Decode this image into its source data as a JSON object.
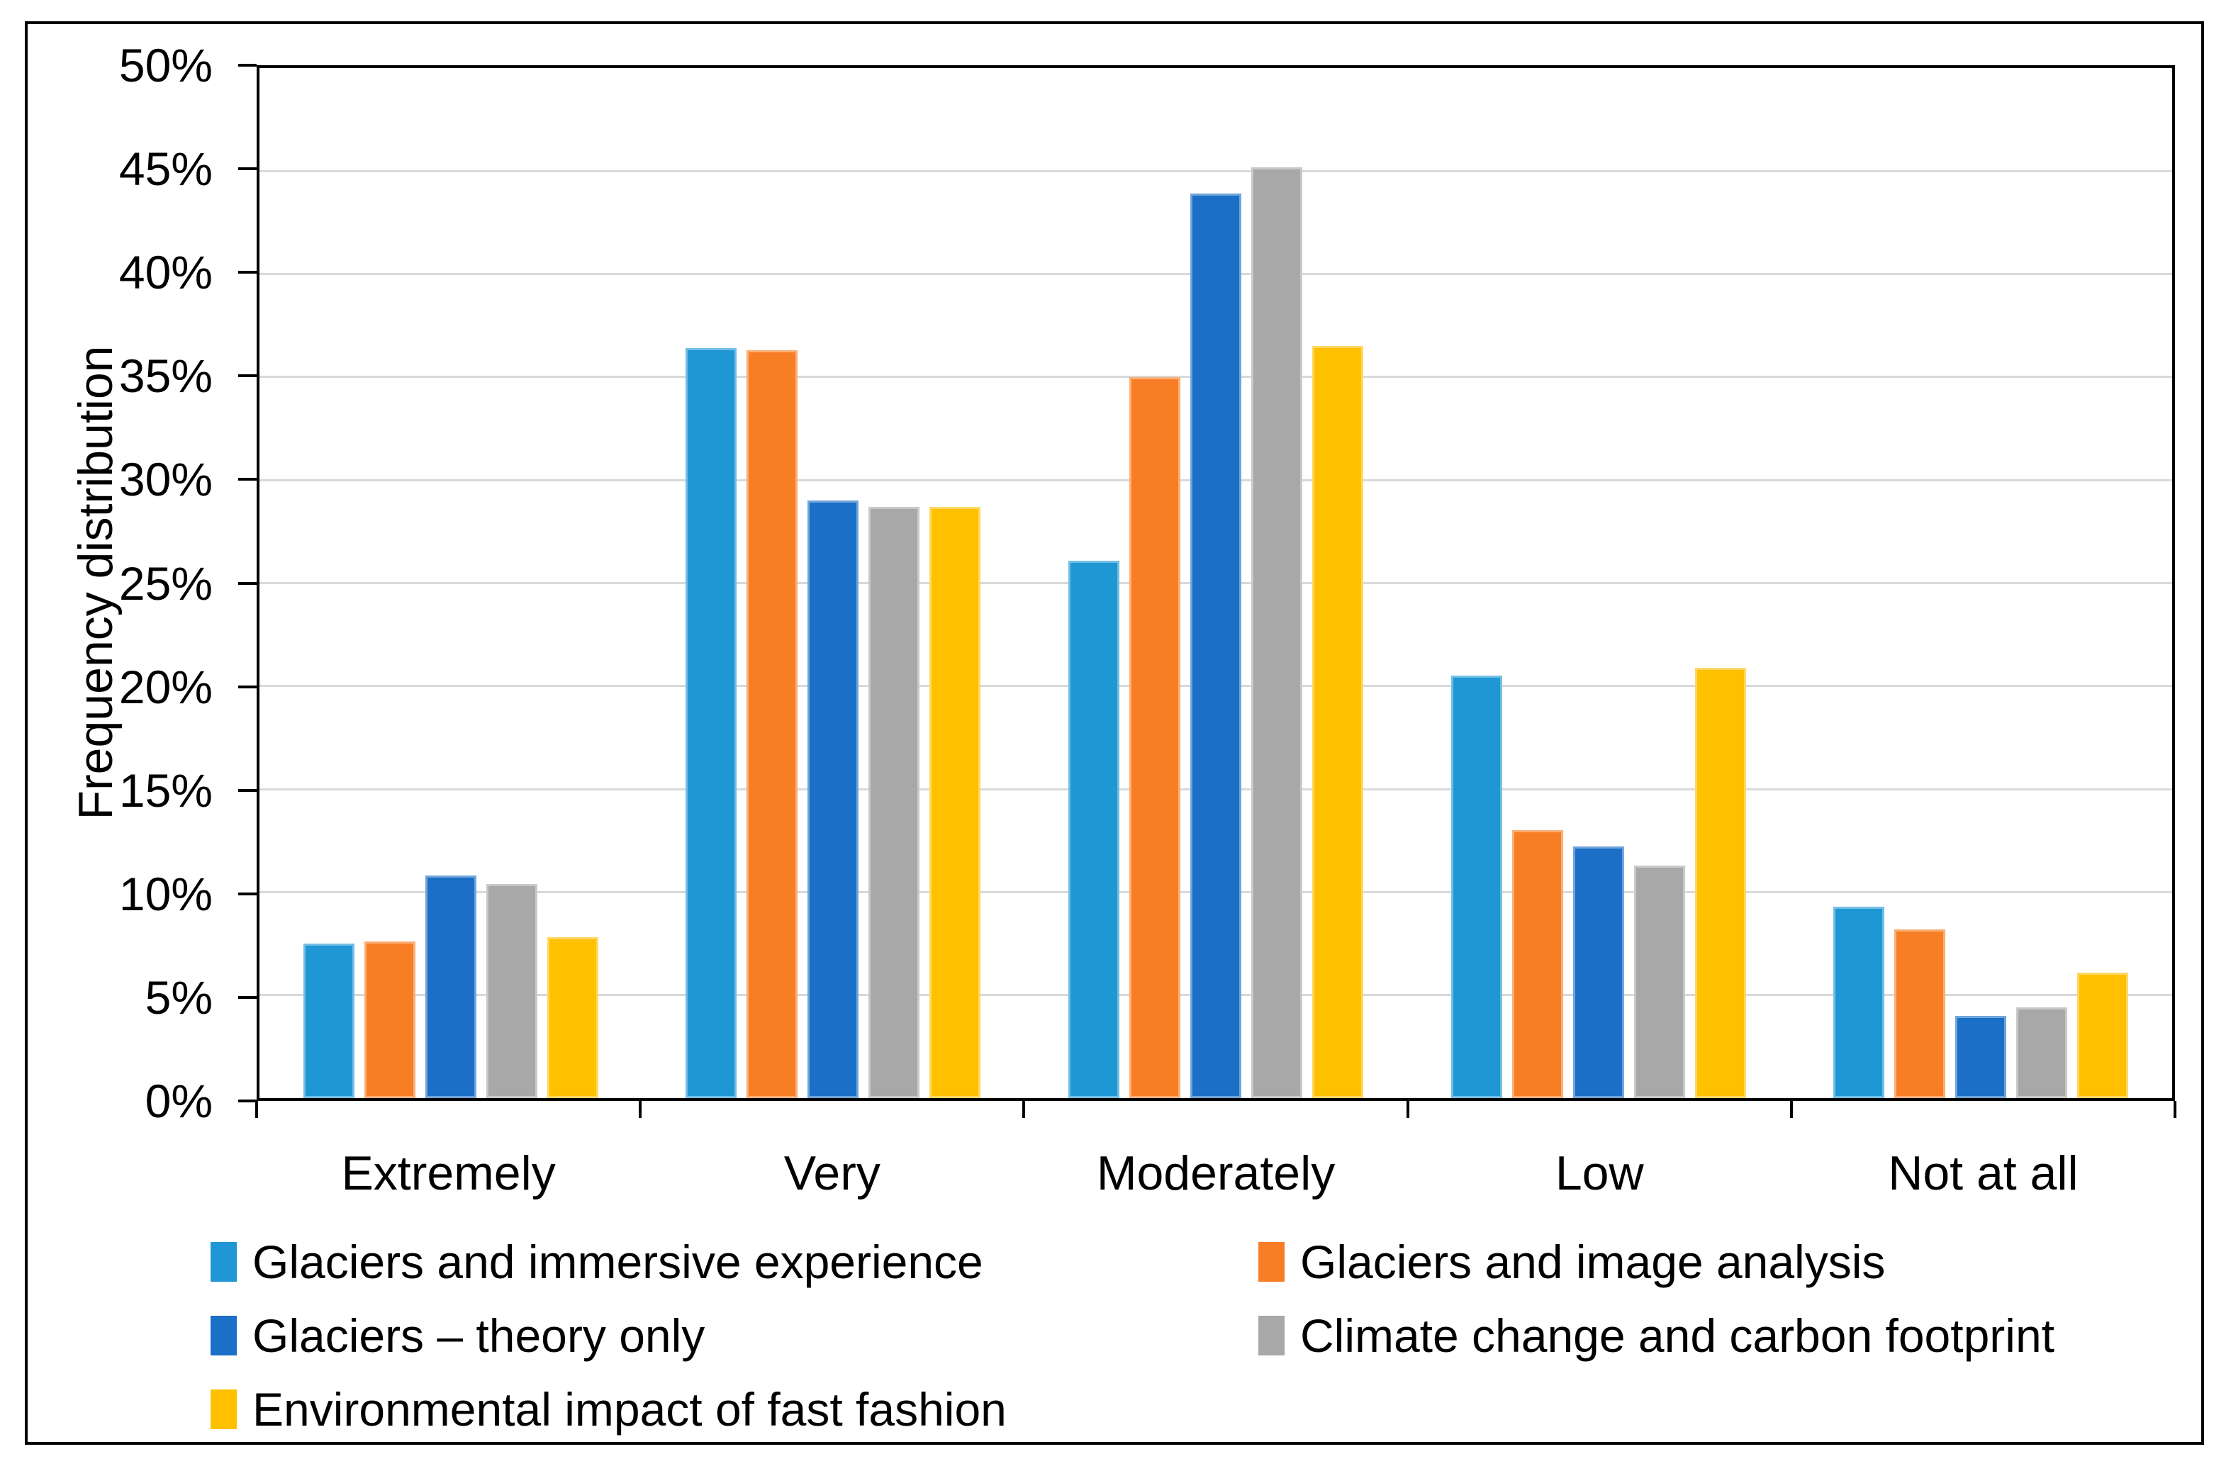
{
  "figure": {
    "background": "#FFFFFF",
    "border_color": "#000000"
  },
  "chart_data": {
    "type": "bar",
    "title": "",
    "ylabel": "Frequency distribution",
    "xlabel": "",
    "ylim": [
      0,
      50
    ],
    "ytick_step": 5,
    "ytick_labels": [
      "0%",
      "5%",
      "10%",
      "15%",
      "20%",
      "25%",
      "30%",
      "35%",
      "40%",
      "45%",
      "50%"
    ],
    "grid": true,
    "gridline_color": "#D9D9D9",
    "axis_color": "#000000",
    "legend_position": "bottom",
    "categories": [
      "Extremely",
      "Very",
      "Moderately",
      "Low",
      "Not at all"
    ],
    "series": [
      {
        "name": "Glaciers and immersive experience",
        "color": "#1E97D4",
        "values": [
          7.5,
          36.4,
          26.1,
          20.5,
          9.3
        ]
      },
      {
        "name": "Glaciers and image analysis",
        "color": "#F87E26",
        "values": [
          7.6,
          36.3,
          35.0,
          13.0,
          8.2
        ]
      },
      {
        "name": "Glaciers – theory only",
        "color": "#1B6FC6",
        "values": [
          10.8,
          29.0,
          43.9,
          12.2,
          4.0
        ]
      },
      {
        "name": "Climate change and carbon footprint",
        "color": "#A8A8A8",
        "values": [
          10.4,
          28.7,
          45.2,
          11.3,
          4.4
        ]
      },
      {
        "name": "Environmental impact of fast fashion",
        "color": "#FFC000",
        "values": [
          7.8,
          28.7,
          36.5,
          20.9,
          6.1
        ]
      }
    ]
  }
}
